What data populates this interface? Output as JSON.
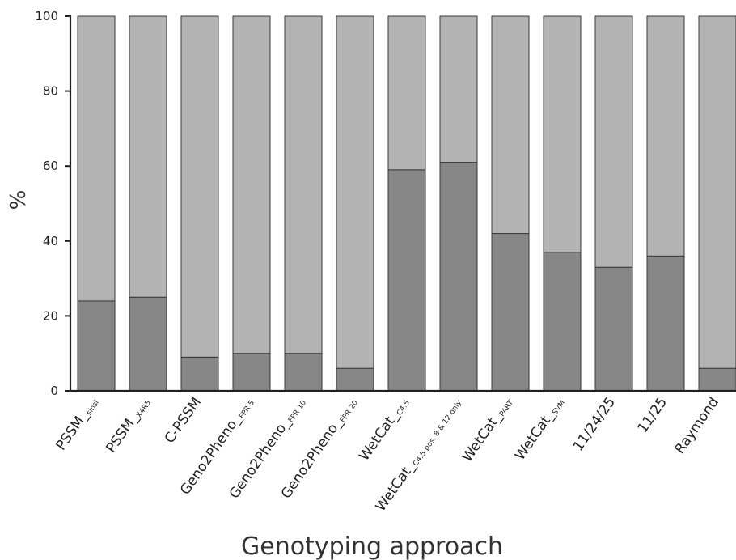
{
  "chart_data": {
    "type": "bar",
    "stacked": true,
    "title": "",
    "xlabel": "Genotyping approach",
    "ylabel": "%",
    "ylim": [
      0,
      100
    ],
    "yticks": [
      "0",
      "20",
      "40",
      "60",
      "80",
      "100"
    ],
    "grid": false,
    "legend": "none",
    "categories": [
      {
        "main": "PSSM_",
        "sub": "sinsi"
      },
      {
        "main": "PSSM_",
        "sub": "X4R5"
      },
      {
        "main": "C-PSSM",
        "sub": ""
      },
      {
        "main": "Geno2Pheno_",
        "sub": "FPR 5"
      },
      {
        "main": "Geno2Pheno_",
        "sub": "FPR 10"
      },
      {
        "main": "Geno2Pheno_",
        "sub": "FPR 20"
      },
      {
        "main": "WetCat_",
        "sub": "C4.5"
      },
      {
        "main": "WetCat_",
        "sub": "C4.5 pos. 8 & 12 only"
      },
      {
        "main": "WetCat_",
        "sub": "PART"
      },
      {
        "main": "WetCat_",
        "sub": "SVM"
      },
      {
        "main": "11/24/25",
        "sub": ""
      },
      {
        "main": "11/25",
        "sub": ""
      },
      {
        "main": "Raymond",
        "sub": ""
      }
    ],
    "series": [
      {
        "values": [
          24,
          25,
          9,
          10,
          10,
          6,
          59,
          61,
          42,
          37,
          33,
          36,
          6
        ],
        "color": "#878787"
      },
      {
        "values": [
          76,
          75,
          91,
          90,
          90,
          94,
          41,
          39,
          58,
          63,
          67,
          64,
          94
        ],
        "color": "#b3b3b3"
      }
    ]
  }
}
